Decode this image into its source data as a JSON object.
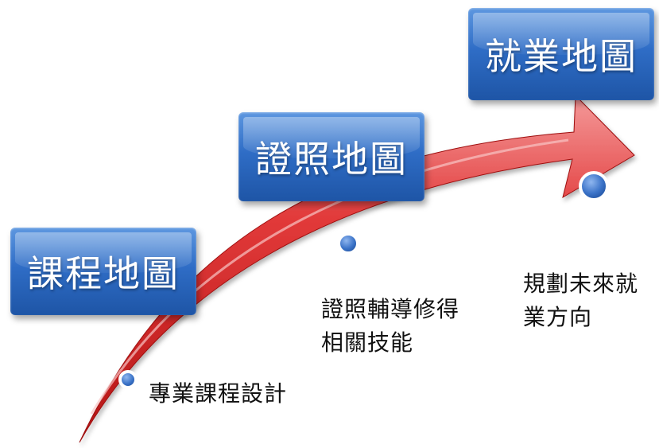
{
  "stages": [
    {
      "title": "課程地圖",
      "description": "專業課程設計"
    },
    {
      "title": "證照地圖",
      "description": "證照輔導修得相關技能"
    },
    {
      "title": "就業地圖",
      "description": "規劃未來就業方向"
    }
  ],
  "colors": {
    "arrow_red": "#d42222",
    "arrow_highlight": "#f08a8a",
    "box_blue": "#2f6dc6",
    "marker_blue": "#3b73c8"
  }
}
